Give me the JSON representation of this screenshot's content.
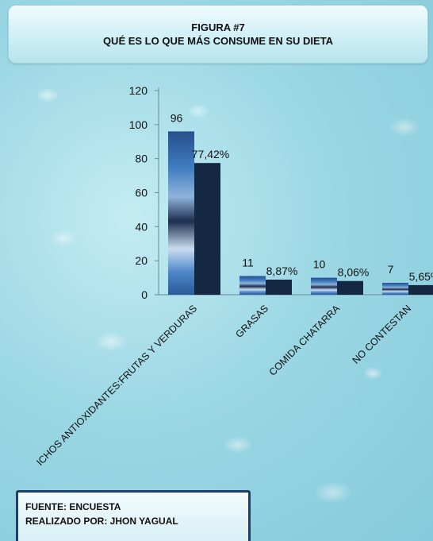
{
  "header": {
    "line1": "FIGURA #7",
    "line2": "QUÉ ES LO QUE MÁS CONSUME EN SU DIETA"
  },
  "footer": {
    "source": "FUENTE: ENCUESTA",
    "author": "REALIZADO POR:  JHON YAGUAL"
  },
  "colors": {
    "count_bar": "#2d5ea0",
    "percent_bar": "#142844",
    "background": "#9bd7e4"
  },
  "chart_data": {
    "type": "bar",
    "title": "FIGURA #7 QUÉ ES LO QUE MÁS CONSUME EN SU DIETA",
    "categories": [
      "ALIMENTOS RICOS ANTIOXIDANTES:FRUTAS Y VERDURAS",
      "GRASAS",
      "COMIDA CHATARRA",
      "NO CONTESTAN"
    ],
    "category_tick_labels": [
      "ICHOS ANTIOXIDANTES:FRUTAS Y VERDURAS",
      "GRASAS",
      "COMIDA CHATARRA",
      "NO CONTESTAN"
    ],
    "series": [
      {
        "values": [
          96,
          11,
          10,
          7
        ],
        "labels": [
          "96",
          "11",
          "10",
          "7"
        ]
      },
      {
        "values": [
          77.42,
          8.87,
          8.06,
          5.65
        ],
        "labels": [
          "77,42%",
          "8,87%",
          "8,06%",
          "5,65%"
        ]
      }
    ],
    "ylim": [
      0,
      120
    ],
    "yticks": [
      0,
      20,
      40,
      60,
      80,
      100,
      120
    ],
    "grid": false,
    "legend": "none",
    "xlabel": "",
    "ylabel": ""
  }
}
